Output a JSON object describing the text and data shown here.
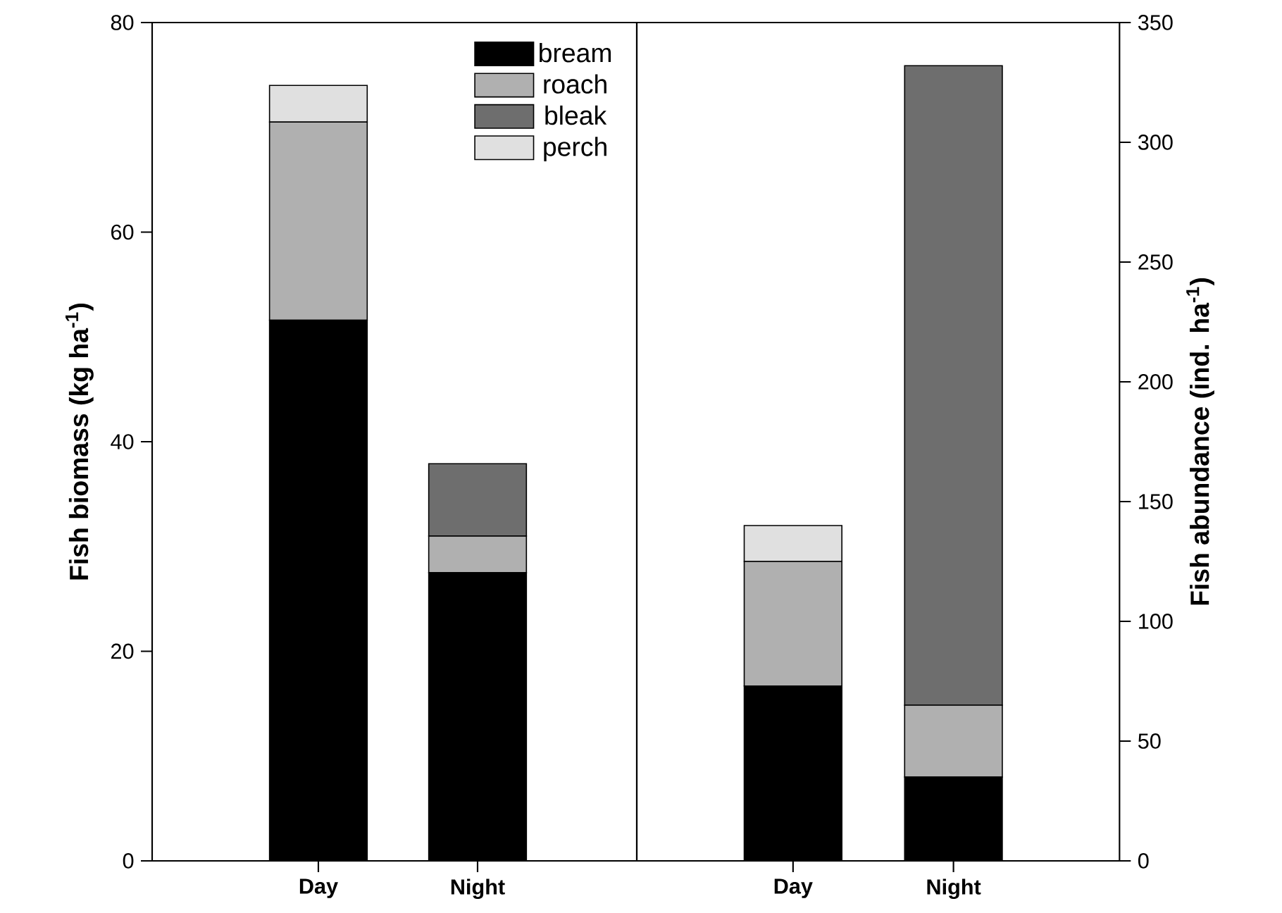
{
  "chart_data": [
    {
      "type": "bar",
      "stacked": true,
      "categories": [
        "Day",
        "Night"
      ],
      "ylabel": "Fish biomass (kg ha$^{-1}$)",
      "ylim": [
        0,
        80
      ],
      "yticks": [
        0,
        20,
        40,
        60,
        80
      ],
      "legend": "top right",
      "series": [
        {
          "name": "bream",
          "color": "#000000",
          "values": [
            51.6,
            27.5
          ]
        },
        {
          "name": "roach",
          "color": "#b0b0b0",
          "values": [
            18.9,
            3.5
          ]
        },
        {
          "name": "bleak",
          "color": "#6e6e6e",
          "values": [
            null,
            6.9
          ]
        },
        {
          "name": "perch",
          "color": "#e0e0e0",
          "values": [
            3.5,
            null
          ]
        }
      ]
    },
    {
      "type": "bar",
      "stacked": true,
      "categories": [
        "Day",
        "Night"
      ],
      "y2label": "Fish abundance (ind. ha$^{-1}$)",
      "y2lim": [
        0,
        350
      ],
      "y2ticks": [
        0,
        50,
        100,
        150,
        200,
        250,
        300,
        350
      ],
      "series": [
        {
          "color": "#000000",
          "values": [
            73,
            35
          ],
          "axis": "y2"
        },
        {
          "color": "#b0b0b0",
          "values": [
            52,
            30
          ],
          "axis": "y2"
        },
        {
          "color": "#6e6e6e",
          "values": [
            null,
            267
          ],
          "axis": "y2"
        },
        {
          "color": "#e0e0e0",
          "values": [
            15,
            null
          ],
          "axis": "y2"
        }
      ]
    }
  ]
}
